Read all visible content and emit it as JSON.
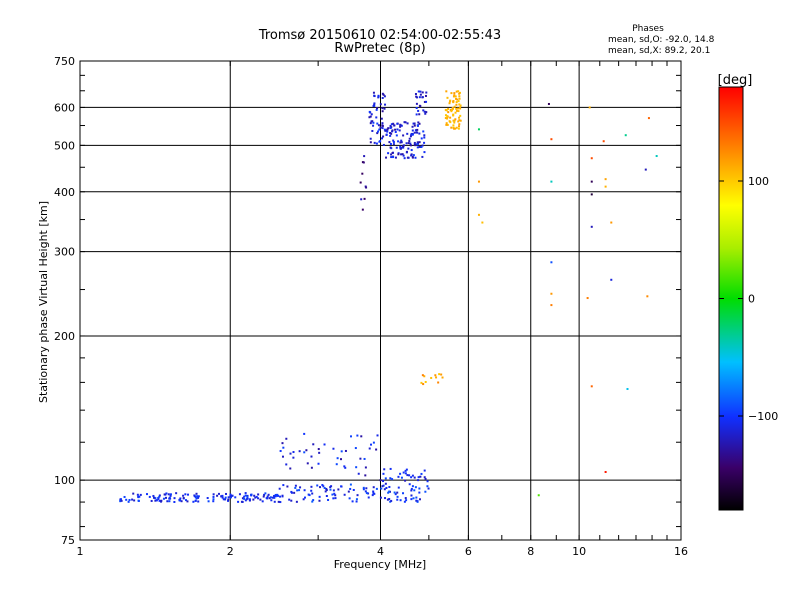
{
  "title": "Tromsø 20150610 02:54:00-02:55:43",
  "subtitle": "RwPretec (8p)",
  "phases": {
    "heading": "Phases",
    "line1": "mean, sd,O: -92.0, 14.8",
    "line2": "mean, sd,X:  89.2, 20.1"
  },
  "chart_data": {
    "type": "scatter",
    "title": "Tromsø 20150610 02:54:00-02:55:43",
    "subtitle": "RwPretec (8p)",
    "xlabel": "Frequency [MHz]",
    "ylabel": "Stationary phase Virtual Height [km]",
    "x_scale": "log2",
    "y_scale": "log",
    "xlim": [
      1,
      16
    ],
    "ylim": [
      75,
      750
    ],
    "x_ticks": [
      1,
      2,
      4,
      6,
      8,
      10,
      16
    ],
    "x_ticklabels": [
      "1",
      "2",
      "4",
      "6",
      "8",
      "10",
      "16"
    ],
    "y_ticks": [
      75,
      100,
      200,
      300,
      400,
      500,
      600,
      750
    ],
    "y_ticklabels": [
      "75",
      "100",
      "200",
      "300",
      "400",
      "500",
      "600",
      "750"
    ],
    "grid": true,
    "colorbar": {
      "label": "[deg]",
      "range": [
        -180,
        180
      ],
      "ticks": [
        100,
        0,
        -100
      ],
      "ticklabels": [
        "100",
        "0",
        "−100"
      ]
    },
    "clusters": [
      {
        "x": [
          1.2,
          2.5
        ],
        "y": [
          90,
          94
        ],
        "n": 150,
        "phase": [
          -120,
          -90
        ]
      },
      {
        "x": [
          2.5,
          5.0
        ],
        "y": [
          90,
          98
        ],
        "n": 120,
        "phase": [
          -120,
          -85
        ]
      },
      {
        "x": [
          2.5,
          4.0
        ],
        "y": [
          102,
          125
        ],
        "n": 45,
        "phase": [
          -130,
          -90
        ]
      },
      {
        "x": [
          4.0,
          5.0
        ],
        "y": [
          98,
          106
        ],
        "n": 30,
        "phase": [
          -120,
          -90
        ]
      },
      {
        "x": [
          3.65,
          3.75
        ],
        "y": [
          360,
          480
        ],
        "n": 10,
        "phase": [
          -150,
          -110
        ]
      },
      {
        "x": [
          3.8,
          4.1
        ],
        "y": [
          500,
          650
        ],
        "n": 55,
        "phase": [
          -130,
          -95
        ]
      },
      {
        "x": [
          4.1,
          4.9
        ],
        "y": [
          470,
          560
        ],
        "n": 130,
        "phase": [
          -130,
          -95
        ]
      },
      {
        "x": [
          4.7,
          4.95
        ],
        "y": [
          580,
          650
        ],
        "n": 25,
        "phase": [
          -130,
          -100
        ]
      },
      {
        "x": [
          5.4,
          5.8
        ],
        "y": [
          540,
          650
        ],
        "n": 75,
        "phase": [
          100,
          120
        ]
      },
      {
        "x": [
          4.8,
          5.6
        ],
        "y": [
          158,
          167
        ],
        "n": 12,
        "phase": [
          100,
          130
        ]
      }
    ],
    "points": [
      {
        "x": 4.0,
        "y": 100,
        "phase": -130
      },
      {
        "x": 6.3,
        "y": 540,
        "phase": -20
      },
      {
        "x": 6.3,
        "y": 420,
        "phase": 120
      },
      {
        "x": 6.3,
        "y": 358,
        "phase": 110
      },
      {
        "x": 6.4,
        "y": 345,
        "phase": 105
      },
      {
        "x": 8.3,
        "y": 93,
        "phase": 20
      },
      {
        "x": 8.7,
        "y": 610,
        "phase": -150
      },
      {
        "x": 8.8,
        "y": 515,
        "phase": 150
      },
      {
        "x": 8.8,
        "y": 420,
        "phase": -40
      },
      {
        "x": 8.8,
        "y": 285,
        "phase": -90
      },
      {
        "x": 8.8,
        "y": 245,
        "phase": 120
      },
      {
        "x": 8.8,
        "y": 232,
        "phase": 130
      },
      {
        "x": 10.5,
        "y": 600,
        "phase": 110
      },
      {
        "x": 10.6,
        "y": 470,
        "phase": 150
      },
      {
        "x": 10.6,
        "y": 420,
        "phase": -150
      },
      {
        "x": 10.6,
        "y": 395,
        "phase": -160
      },
      {
        "x": 10.6,
        "y": 338,
        "phase": -120
      },
      {
        "x": 10.4,
        "y": 240,
        "phase": 130
      },
      {
        "x": 10.6,
        "y": 157,
        "phase": 140
      },
      {
        "x": 11.2,
        "y": 510,
        "phase": 150
      },
      {
        "x": 11.3,
        "y": 425,
        "phase": 115
      },
      {
        "x": 11.3,
        "y": 410,
        "phase": 110
      },
      {
        "x": 11.6,
        "y": 345,
        "phase": 120
      },
      {
        "x": 11.6,
        "y": 262,
        "phase": -110
      },
      {
        "x": 11.3,
        "y": 104,
        "phase": 170
      },
      {
        "x": 12.4,
        "y": 525,
        "phase": -30
      },
      {
        "x": 12.5,
        "y": 155,
        "phase": -50
      },
      {
        "x": 13.8,
        "y": 570,
        "phase": 140
      },
      {
        "x": 13.6,
        "y": 445,
        "phase": -120
      },
      {
        "x": 13.7,
        "y": 242,
        "phase": 125
      },
      {
        "x": 14.3,
        "y": 475,
        "phase": -40
      }
    ]
  }
}
